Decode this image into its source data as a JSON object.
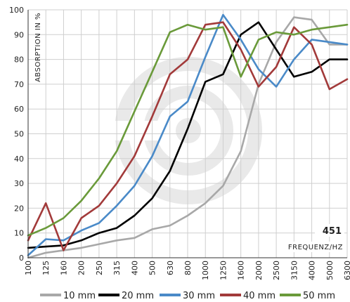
{
  "chart_data": {
    "type": "line",
    "code": "451",
    "xlabel": "FREQUENZ/HZ",
    "ylabel": "ABSORPTION IN %",
    "ylim": [
      0,
      100
    ],
    "yticks": [
      0,
      10,
      20,
      30,
      40,
      50,
      60,
      70,
      80,
      90,
      100
    ],
    "grid": true,
    "legend_position": "bottom",
    "categories": [
      "100",
      "125",
      "160",
      "200",
      "250",
      "315",
      "400",
      "500",
      "630",
      "800",
      "1000",
      "1250",
      "1600",
      "2000",
      "2500",
      "3150",
      "4000",
      "5000",
      "6300"
    ],
    "series": [
      {
        "name": "10 mm",
        "color": "#a8a8a8",
        "values": [
          0,
          2,
          3,
          4,
          5.5,
          7,
          8,
          11.5,
          13,
          17,
          22,
          29,
          43,
          70,
          87,
          97,
          96,
          86,
          86
        ]
      },
      {
        "name": "20 mm",
        "color": "#000000",
        "values": [
          4,
          4.5,
          5,
          7,
          10,
          12,
          17,
          24,
          35,
          52,
          71,
          74,
          90,
          95,
          84,
          73,
          75,
          80,
          80
        ]
      },
      {
        "name": "30 mm",
        "color": "#4a8ac8",
        "values": [
          1,
          7.5,
          7,
          11,
          14,
          21,
          29,
          41,
          57,
          63,
          81,
          98,
          88,
          76,
          69,
          80,
          88,
          87,
          86
        ]
      },
      {
        "name": "40 mm",
        "color": "#a23a3a",
        "values": [
          7,
          22,
          3,
          16,
          21,
          30,
          41,
          57,
          74,
          80,
          94,
          95,
          84,
          69,
          77,
          93,
          86,
          68,
          72
        ]
      },
      {
        "name": "50 mm",
        "color": "#6a9a3a",
        "values": [
          9,
          12,
          16,
          23,
          32,
          43,
          59,
          75,
          91,
          94,
          92,
          93,
          73,
          88,
          91,
          90,
          92,
          93,
          94
        ]
      }
    ]
  }
}
